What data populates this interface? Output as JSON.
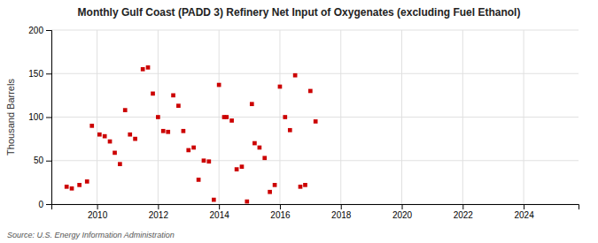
{
  "chart_data": {
    "type": "scatter",
    "title": "Monthly Gulf Coast (PADD 3) Refinery Net Input of Oxygenates (excluding Fuel Ethanol)",
    "ylabel": "Thousand Barrels",
    "source": "Source: U.S. Energy Information Administration",
    "color": "#cc0000",
    "marker": "square",
    "grid": true,
    "xlim": [
      2008.5,
      2025.8
    ],
    "ylim": [
      0,
      200
    ],
    "xticks": [
      2010,
      2012,
      2014,
      2016,
      2018,
      2020,
      2022,
      2024
    ],
    "yticks": [
      0,
      50,
      100,
      150,
      200
    ],
    "x": [
      2009.0,
      2009.17,
      2009.42,
      2009.67,
      2009.83,
      2010.08,
      2010.25,
      2010.42,
      2010.58,
      2010.75,
      2010.92,
      2011.08,
      2011.25,
      2011.5,
      2011.67,
      2011.83,
      2012.0,
      2012.17,
      2012.33,
      2012.5,
      2012.67,
      2012.83,
      2013.0,
      2013.17,
      2013.33,
      2013.5,
      2013.67,
      2013.83,
      2014.0,
      2014.17,
      2014.25,
      2014.42,
      2014.58,
      2014.75,
      2014.92,
      2015.08,
      2015.17,
      2015.33,
      2015.5,
      2015.67,
      2015.83,
      2016.0,
      2016.17,
      2016.33,
      2016.5,
      2016.67,
      2016.83,
      2017.0,
      2017.17
    ],
    "values": [
      20,
      18,
      22,
      26,
      90,
      80,
      78,
      72,
      59,
      46,
      108,
      80,
      75,
      155,
      157,
      127,
      100,
      84,
      83,
      125,
      113,
      84,
      62,
      65,
      28,
      50,
      49,
      5,
      137,
      100,
      100,
      96,
      40,
      43,
      3,
      115,
      70,
      65,
      53,
      14,
      22,
      135,
      100,
      85,
      148,
      20,
      22,
      130,
      95
    ]
  }
}
